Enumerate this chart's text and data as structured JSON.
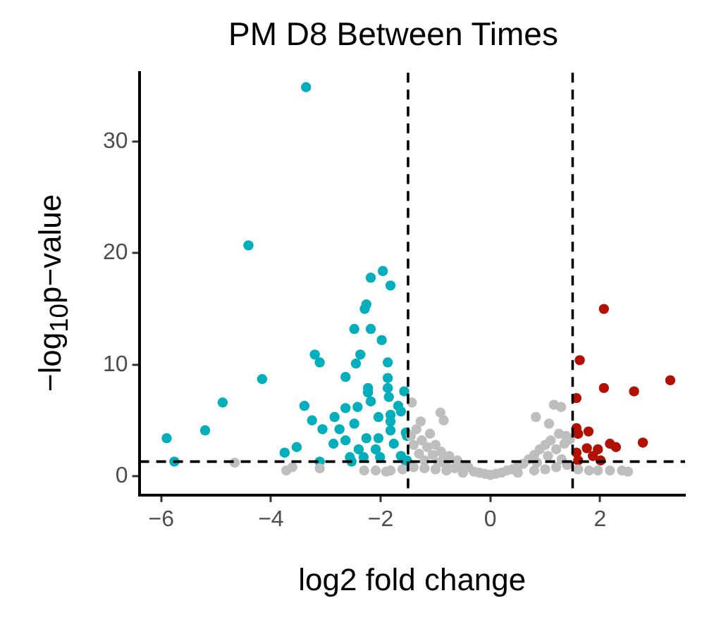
{
  "chart_data": {
    "type": "scatter",
    "title": "PM D8 Between Times",
    "xlabel": "log2 fold change",
    "ylabel": "−log$_{10}$p−value",
    "xlim": [
      -6.4,
      3.55
    ],
    "ylim": [
      -1.7,
      36.2
    ],
    "xticks": [
      -6,
      -4,
      -2,
      0,
      2
    ],
    "yticks": [
      0,
      10,
      20,
      30
    ],
    "grid": false,
    "legend": false,
    "marker": "circle",
    "ref_lines": [
      {
        "axis": "x",
        "value": -1.5,
        "line_style": "dashed",
        "color": "#000000"
      },
      {
        "axis": "x",
        "value": 1.5,
        "line_style": "dashed",
        "color": "#000000"
      },
      {
        "axis": "y",
        "value": 1.3,
        "line_style": "dashed",
        "color": "#000000"
      }
    ],
    "series": [
      {
        "color": "#bebebe",
        "x": [
          -1.45,
          -1.4,
          -1.35,
          -1.3,
          -1.25,
          -1.2,
          -1.15,
          -1.1,
          -1.05,
          -1.0,
          -0.95,
          -0.9,
          -0.85,
          -0.8,
          -0.75,
          -0.65,
          -0.6,
          -0.5,
          -0.4,
          -0.3,
          -0.2,
          -0.1,
          0,
          0.1,
          0.2,
          0.3,
          0.4,
          0.5,
          0.6,
          0.7,
          0.8,
          0.85,
          0.9,
          1.0,
          1.05,
          1.1,
          1.2,
          1.25,
          1.3,
          1.35,
          1.45,
          1.4,
          1.2,
          1.0,
          0.8,
          0.5,
          -0.5,
          -0.8,
          -1.0,
          -1.2,
          -1.4,
          -1.6,
          -1.9,
          -2.3,
          1.6,
          1.8,
          -4.66,
          -3.72,
          -3.61,
          -3.11,
          -2.09,
          -1.82,
          -1.43,
          -1.27,
          -0.91,
          -0.85,
          0.83,
          1.16,
          1.29,
          1.07,
          1.38,
          2.51,
          2.4,
          2.18,
          1.96
        ],
        "values": [
          3.6,
          2.8,
          4.2,
          2.0,
          3.2,
          1.4,
          2.6,
          3.8,
          1.9,
          2.8,
          1.2,
          2.2,
          1.6,
          0.9,
          1.8,
          0.7,
          1.4,
          0.9,
          0.8,
          0.4,
          0.3,
          0.2,
          0.1,
          0.2,
          0.3,
          0.5,
          0.6,
          0.9,
          1.1,
          1.5,
          1.9,
          1.2,
          2.4,
          2.8,
          1.8,
          3.2,
          2.4,
          3.8,
          1.5,
          2.9,
          3.3,
          1.0,
          0.8,
          0.6,
          0.5,
          0.3,
          0.3,
          0.5,
          0.6,
          0.7,
          0.8,
          0.6,
          0.4,
          0.5,
          0.6,
          0.5,
          1.2,
          0.5,
          0.8,
          0.7,
          0.5,
          0.5,
          6.6,
          4.9,
          5.7,
          5.0,
          5.3,
          6.4,
          6.2,
          4.7,
          3.6,
          0.4,
          0.5,
          0.5,
          0.5
        ]
      },
      {
        "color": "#00afbb",
        "x": [
          -3.36,
          -4.41,
          -1.96,
          -2.18,
          -1.82,
          -2.29,
          -2.26,
          -2.18,
          -1.98,
          -2.48,
          -3.2,
          -3.11,
          -2.37,
          -2.45,
          -1.87,
          -2.64,
          -4.16,
          -1.87,
          -2.23,
          -2.23,
          -1.87,
          -1.57,
          -1.85,
          -2.18,
          -4.88,
          -3.39,
          -2.64,
          -2.42,
          -1.68,
          -3.25,
          -2.84,
          -2.48,
          -2.04,
          -1.82,
          -1.63,
          -1.82,
          -3.06,
          -2.75,
          -5.2,
          -5.9,
          -2.86,
          -2.64,
          -2.26,
          -2.04,
          -1.82,
          -1.54,
          -3.53,
          -3.75,
          -2.4,
          -2.09,
          -1.76,
          -2.56,
          -2.31,
          -2.01,
          -1.63,
          -3.11,
          -5.76,
          -2.53,
          -1.54,
          -1.52,
          -1.52
        ],
        "values": [
          34.9,
          20.7,
          18.4,
          17.8,
          17.1,
          15.0,
          15.4,
          13.2,
          12.2,
          13.2,
          10.9,
          10.2,
          10.9,
          10.1,
          10.2,
          8.9,
          8.7,
          8.8,
          7.9,
          7.5,
          7.9,
          7.6,
          7.1,
          6.7,
          6.6,
          6.3,
          6.1,
          6.2,
          6.3,
          5.0,
          5.3,
          4.7,
          5.3,
          5.5,
          5.8,
          4.9,
          4.2,
          4.2,
          4.1,
          3.4,
          2.9,
          3.2,
          3.4,
          3.4,
          4.1,
          3.9,
          2.6,
          2.1,
          2.4,
          2.4,
          2.9,
          1.7,
          1.7,
          1.7,
          1.8,
          1.3,
          1.3,
          1.3,
          1.3,
          3.6,
          1.4
        ]
      },
      {
        "color": "#b21000",
        "x": [
          2.07,
          1.63,
          3.28,
          2.07,
          2.62,
          1.57,
          1.57,
          1.79,
          1.6,
          2.78,
          2.18,
          2.29,
          1.76,
          1.96,
          1.57,
          1.87,
          2.01,
          1.6
        ],
        "values": [
          15.0,
          10.4,
          8.6,
          7.9,
          7.6,
          7.0,
          4.3,
          4.0,
          3.8,
          3.0,
          2.9,
          2.6,
          2.5,
          2.4,
          2.1,
          1.8,
          1.4,
          1.4
        ]
      }
    ]
  }
}
